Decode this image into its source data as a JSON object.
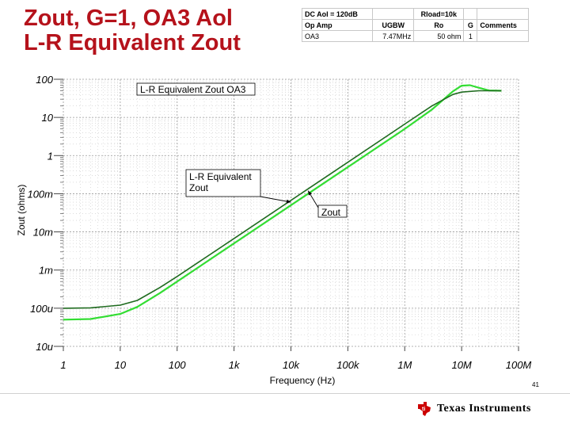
{
  "slide": {
    "title_line1": "Zout, G=1, OA3 Aol",
    "title_line2": "L-R Equivalent Zout",
    "page_number": "41",
    "logo_text": "Texas Instruments"
  },
  "params_table": {
    "header": [
      "DC Aol = 120dB",
      "",
      "Rload=10k",
      "",
      ""
    ],
    "columns": [
      "Op Amp",
      "UGBW",
      "Ro",
      "G",
      "Comments"
    ],
    "row": [
      "OA3",
      "7.47MHz",
      "50 ohm",
      "1",
      ""
    ]
  },
  "colors": {
    "title": "#b5121b",
    "series_dark": "#1f6b1f",
    "series_light": "#33dd33",
    "logo_red": "#cc0000"
  },
  "chart_data": {
    "type": "line",
    "title": "L-R Equivalent Zout OA3",
    "xlabel": "Frequency (Hz)",
    "ylabel": "Zout (ohms)",
    "xscale": "log",
    "yscale": "log",
    "xlim": [
      1,
      100000000
    ],
    "ylim": [
      1e-05,
      100
    ],
    "x_ticks": [
      {
        "value": 1,
        "label": "1"
      },
      {
        "value": 10,
        "label": "10"
      },
      {
        "value": 100,
        "label": "100"
      },
      {
        "value": 1000,
        "label": "1k"
      },
      {
        "value": 10000,
        "label": "10k"
      },
      {
        "value": 100000,
        "label": "100k"
      },
      {
        "value": 1000000,
        "label": "1M"
      },
      {
        "value": 10000000,
        "label": "10M"
      },
      {
        "value": 100000000,
        "label": "100M"
      }
    ],
    "y_ticks": [
      {
        "value": 100,
        "label": "100"
      },
      {
        "value": 10,
        "label": "10"
      },
      {
        "value": 1,
        "label": "1"
      },
      {
        "value": 0.1,
        "label": "100m"
      },
      {
        "value": 0.01,
        "label": "10m"
      },
      {
        "value": 0.001,
        "label": "1m"
      },
      {
        "value": 0.0001,
        "label": "100u"
      },
      {
        "value": 1e-05,
        "label": "10u"
      }
    ],
    "series": [
      {
        "name": "Zout",
        "color": "#1f6b1f",
        "x": [
          1,
          3,
          10,
          20,
          50,
          100,
          1000,
          10000,
          100000,
          1000000,
          3000000,
          7000000,
          10000000,
          20000000,
          50000000
        ],
        "y": [
          0.0001,
          0.000102,
          0.00012,
          0.00016,
          0.00035,
          0.00068,
          0.0067,
          0.067,
          0.67,
          6.7,
          20,
          40,
          46,
          50,
          50
        ]
      },
      {
        "name": "L-R Equivalent Zout",
        "color": "#33dd33",
        "x": [
          1,
          3,
          10,
          20,
          50,
          100,
          1000,
          10000,
          100000,
          1000000,
          3000000,
          7000000,
          10000000,
          14000000,
          20000000,
          30000000,
          50000000
        ],
        "y": [
          5e-05,
          5.2e-05,
          7.07e-05,
          0.000108,
          0.00025,
          0.0005,
          0.005,
          0.05,
          0.5,
          5,
          16,
          48,
          68,
          70,
          60,
          51,
          50
        ]
      }
    ],
    "annotations": [
      {
        "text_lines": [
          "L-R Equivalent",
          "Zout"
        ],
        "points_to_x": 10000,
        "points_to_y": 0.06
      },
      {
        "text_lines": [
          "Zout"
        ],
        "points_to_x": 20000,
        "points_to_y": 0.12
      }
    ]
  }
}
